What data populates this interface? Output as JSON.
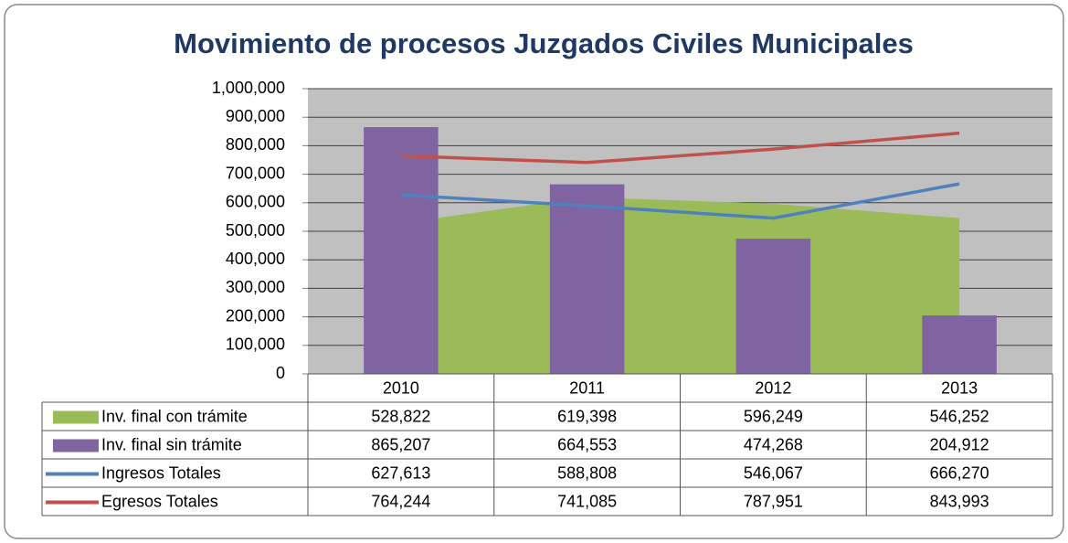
{
  "chart_data": {
    "type": "combo",
    "title": "Movimiento de procesos Juzgados Civiles Municipales",
    "categories": [
      "2010",
      "2011",
      "2012",
      "2013"
    ],
    "series": [
      {
        "name": "Inv. final con trámite",
        "type": "area",
        "color": "#9bbb59",
        "values": [
          528822,
          619398,
          596249,
          546252
        ],
        "value_labels": [
          "528,822",
          "619,398",
          "596,249",
          "546,252"
        ]
      },
      {
        "name": "Inv. final sin trámite",
        "type": "bar",
        "color": "#8064a2",
        "values": [
          865207,
          664553,
          474268,
          204912
        ],
        "value_labels": [
          "865,207",
          "664,553",
          "474,268",
          "204,912"
        ]
      },
      {
        "name": "Ingresos Totales",
        "type": "line",
        "color": "#4f81bd",
        "values": [
          627613,
          588808,
          546067,
          666270
        ],
        "value_labels": [
          "627,613",
          "588,808",
          "546,067",
          "666,270"
        ]
      },
      {
        "name": "Egresos Totales",
        "type": "line",
        "color": "#c0504d",
        "values": [
          764244,
          741085,
          787951,
          843993
        ],
        "value_labels": [
          "764,244",
          "741,085",
          "787,951",
          "843,993"
        ]
      }
    ],
    "ylim": [
      0,
      1000000
    ],
    "yticks": [
      0,
      {
        "value": 100000,
        "label": "100,000"
      },
      {
        "value": 200000,
        "label": "200,000"
      },
      {
        "value": 300000,
        "label": "300,000"
      },
      {
        "value": 400000,
        "label": "400,000"
      },
      {
        "value": 500000,
        "label": "500,000"
      },
      {
        "value": 600000,
        "label": "600,000"
      },
      {
        "value": 700000,
        "label": "700,000"
      },
      {
        "value": 800000,
        "label": "800,000"
      },
      {
        "value": 900000,
        "label": "900,000"
      },
      {
        "value": 1000000,
        "label": "1,000,000"
      }
    ],
    "grid": true
  }
}
